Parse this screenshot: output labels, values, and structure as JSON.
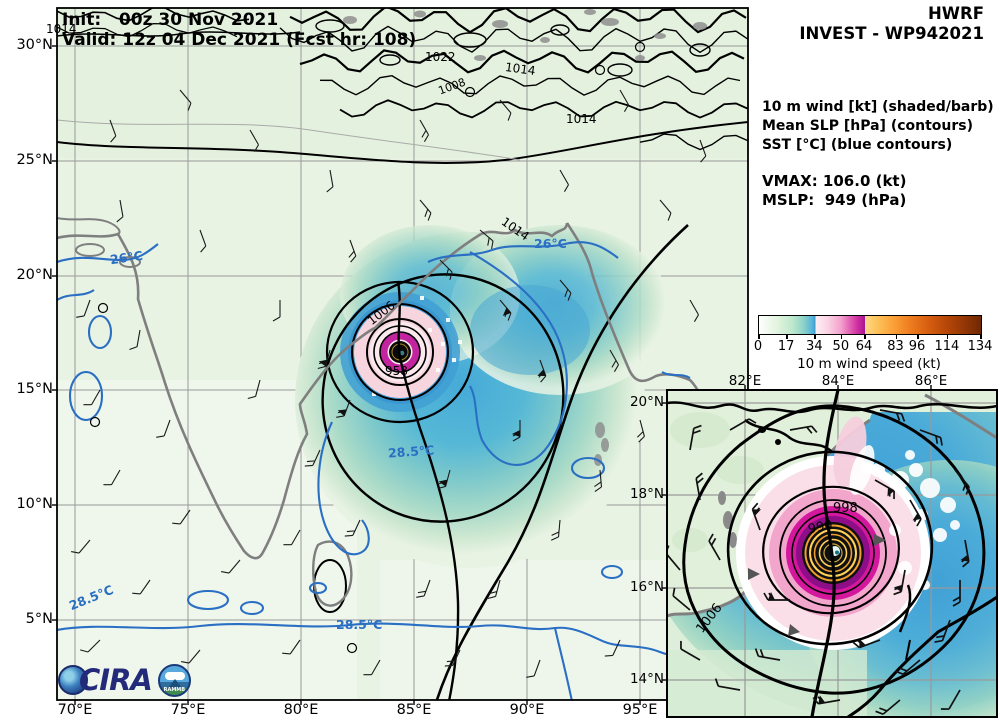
{
  "header": {
    "model": "HWRF",
    "storm_id": "INVEST - WP942021"
  },
  "map_title": {
    "init": "Init:   00z 30 Nov 2021",
    "valid": "Valid: 12z 04 Dec 2021 (Fcst hr: 108)"
  },
  "legend": {
    "wind": "10 m wind [kt] (shaded/barb)",
    "slp": "Mean SLP [hPa] (contours)",
    "sst": "SST [°C] (blue contours)",
    "vmax": "VMAX: 106.0 (kt)",
    "mslp": "MSLP:  949 (hPa)"
  },
  "colorbar": {
    "title": "10 m wind speed (kt)",
    "tick_values": [
      0,
      17,
      34,
      50,
      64,
      83,
      96,
      114,
      134
    ],
    "max": 134,
    "segments": [
      {
        "range": "0-34",
        "from": "#feffff",
        "to": "#3d9bd1"
      },
      {
        "range": "34-64",
        "from": "#fdf0f4",
        "to": "#a81493"
      },
      {
        "range": "64-134",
        "from": "#fdd98a",
        "to": "#6f2803"
      }
    ]
  },
  "main_map": {
    "x_ticks": [
      "70°E",
      "75°E",
      "80°E",
      "85°E",
      "90°E",
      "95°E"
    ],
    "y_ticks": [
      "30°N",
      "25°N",
      "20°N",
      "15°N",
      "10°N",
      "5°N"
    ],
    "slp_labels": {
      "a": "1014",
      "b": "1022",
      "c": "1008",
      "d": "1014",
      "e": "1014",
      "f": "1014",
      "g": "1006",
      "h": "958"
    },
    "sst_labels": {
      "a": "26°C",
      "b": "26°C",
      "c": "28.5°C",
      "d": "28.5°C",
      "e": "28.5°C"
    }
  },
  "inset_map": {
    "x_ticks": [
      "82°E",
      "84°E",
      "86°E"
    ],
    "y_ticks": [
      "20°N",
      "18°N",
      "16°N",
      "14°N"
    ],
    "slp_labels": {
      "a": "1006",
      "b": "998",
      "c": "990"
    }
  },
  "logo": {
    "cira": "CIRA",
    "rammb": "RAMMB"
  },
  "colors": {
    "slp_contour": "#000000",
    "sst_contour": "#2a6fc4",
    "coastline": "#7f7f7f",
    "grid": "#999999",
    "background_land": "#e8f3e4",
    "storm_core": "#0a0a0a",
    "magenta_ring": "#c2239f"
  }
}
